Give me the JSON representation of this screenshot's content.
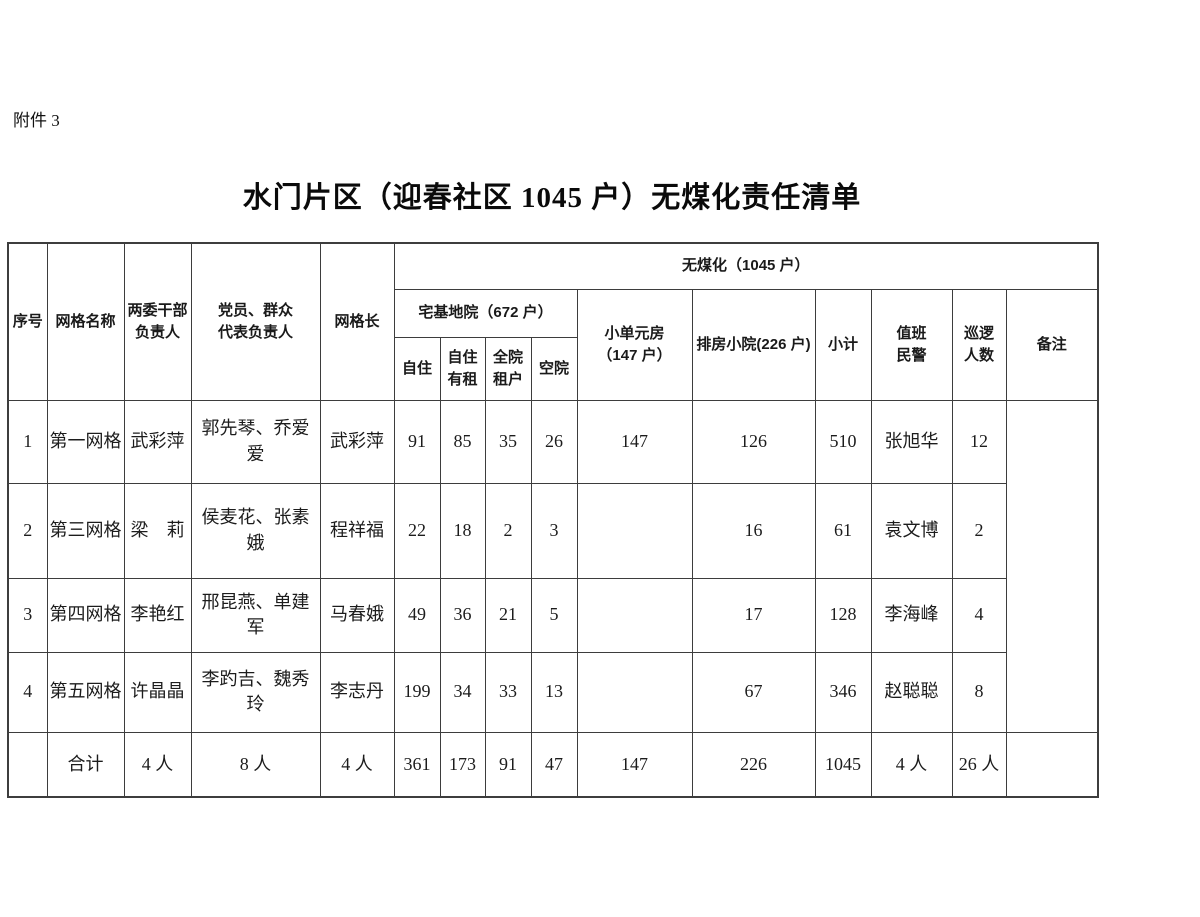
{
  "page": {
    "attachment_label": "附件 3",
    "title": "水门片区（迎春社区 1045 户）无煤化责任清单"
  },
  "table": {
    "headers": {
      "seq": "序号",
      "grid_name": "网格名称",
      "cadre": "两委干部\n负责人",
      "party_reps": "党员、群众\n代表负责人",
      "grid_leader": "网格长",
      "no_coal_group": "无煤化（1045 户）",
      "homestead_group": "宅基地院（672 户）",
      "self_occupied": "自住",
      "self_occupied_rented": "自住\n有租",
      "whole_yard_tenant": "全院\n租户",
      "empty_yard": "空院",
      "small_unit_housing": "小单元房\n（147 户）",
      "row_housing": "排房小院(226 户)",
      "subtotal": "小计",
      "duty_police": "值班\n民警",
      "patrol_count": "巡逻\n人数",
      "remarks": "备注"
    },
    "rows": [
      {
        "seq": "1",
        "grid_name": "第一网格",
        "cadre": "武彩萍",
        "party_reps": "郭先琴、乔爱爱",
        "grid_leader": "武彩萍",
        "self_occupied": "91",
        "self_occupied_rented": "85",
        "whole_yard_tenant": "35",
        "empty_yard": "26",
        "small_unit_housing": "147",
        "row_housing": "126",
        "subtotal": "510",
        "duty_police": "张旭华",
        "patrol_count": "12"
      },
      {
        "seq": "2",
        "grid_name": "第三网格",
        "cadre": "梁　莉",
        "party_reps": "侯麦花、张素娥",
        "grid_leader": "程祥福",
        "self_occupied": "22",
        "self_occupied_rented": "18",
        "whole_yard_tenant": "2",
        "empty_yard": "3",
        "small_unit_housing": "",
        "row_housing": "16",
        "subtotal": "61",
        "duty_police": "袁文博",
        "patrol_count": "2"
      },
      {
        "seq": "3",
        "grid_name": "第四网格",
        "cadre": "李艳红",
        "party_reps": "邢昆燕、单建军",
        "grid_leader": "马春娥",
        "self_occupied": "49",
        "self_occupied_rented": "36",
        "whole_yard_tenant": "21",
        "empty_yard": "5",
        "small_unit_housing": "",
        "row_housing": "17",
        "subtotal": "128",
        "duty_police": "李海峰",
        "patrol_count": "4"
      },
      {
        "seq": "4",
        "grid_name": "第五网格",
        "cadre": "许晶晶",
        "party_reps": "李趵吉、魏秀玲",
        "grid_leader": "李志丹",
        "self_occupied": "199",
        "self_occupied_rented": "34",
        "whole_yard_tenant": "33",
        "empty_yard": "13",
        "small_unit_housing": "",
        "row_housing": "67",
        "subtotal": "346",
        "duty_police": "赵聪聪",
        "patrol_count": "8"
      }
    ],
    "remarks_merged": "",
    "total_row": {
      "seq": "",
      "grid_name": "合计",
      "cadre": "4 人",
      "party_reps": "8 人",
      "grid_leader": "4 人",
      "self_occupied": "361",
      "self_occupied_rented": "173",
      "whole_yard_tenant": "91",
      "empty_yard": "47",
      "small_unit_housing": "147",
      "row_housing": "226",
      "subtotal": "1045",
      "duty_police": "4 人",
      "patrol_count": "26 人",
      "remarks": ""
    }
  }
}
